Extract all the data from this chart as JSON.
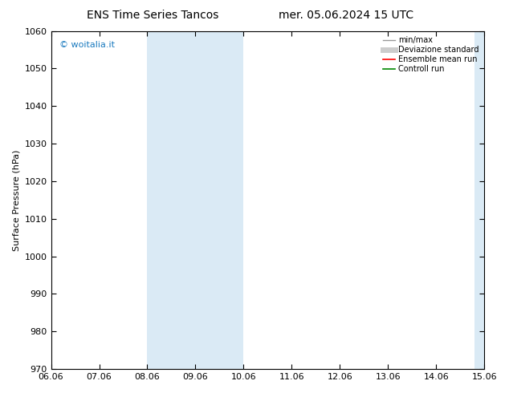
{
  "title_left": "ENS Time Series Tancos",
  "title_right": "mer. 05.06.2024 15 UTC",
  "ylabel": "Surface Pressure (hPa)",
  "ylim": [
    970,
    1060
  ],
  "yticks": [
    970,
    980,
    990,
    1000,
    1010,
    1020,
    1030,
    1040,
    1050,
    1060
  ],
  "xlabels": [
    "06.06",
    "07.06",
    "08.06",
    "09.06",
    "10.06",
    "11.06",
    "12.06",
    "13.06",
    "14.06",
    "15.06"
  ],
  "xvalues": [
    0,
    1,
    2,
    3,
    4,
    5,
    6,
    7,
    8,
    9
  ],
  "shaded_bands": [
    {
      "xmin": 2.0,
      "xmax": 4.0
    },
    {
      "xmin": 8.8,
      "xmax": 9.6
    }
  ],
  "band_color": "#daeaf5",
  "watermark": "© woitalia.it",
  "watermark_color": "#1a7abf",
  "legend_entries": [
    {
      "label": "min/max",
      "color": "#999999",
      "lw": 1.0
    },
    {
      "label": "Deviazione standard",
      "color": "#cccccc",
      "lw": 5
    },
    {
      "label": "Ensemble mean run",
      "color": "#ff0000",
      "lw": 1.2
    },
    {
      "label": "Controll run",
      "color": "#008800",
      "lw": 1.2
    }
  ],
  "background_color": "#ffffff",
  "axes_background": "#ffffff",
  "title_fontsize": 10,
  "label_fontsize": 8,
  "tick_fontsize": 8
}
